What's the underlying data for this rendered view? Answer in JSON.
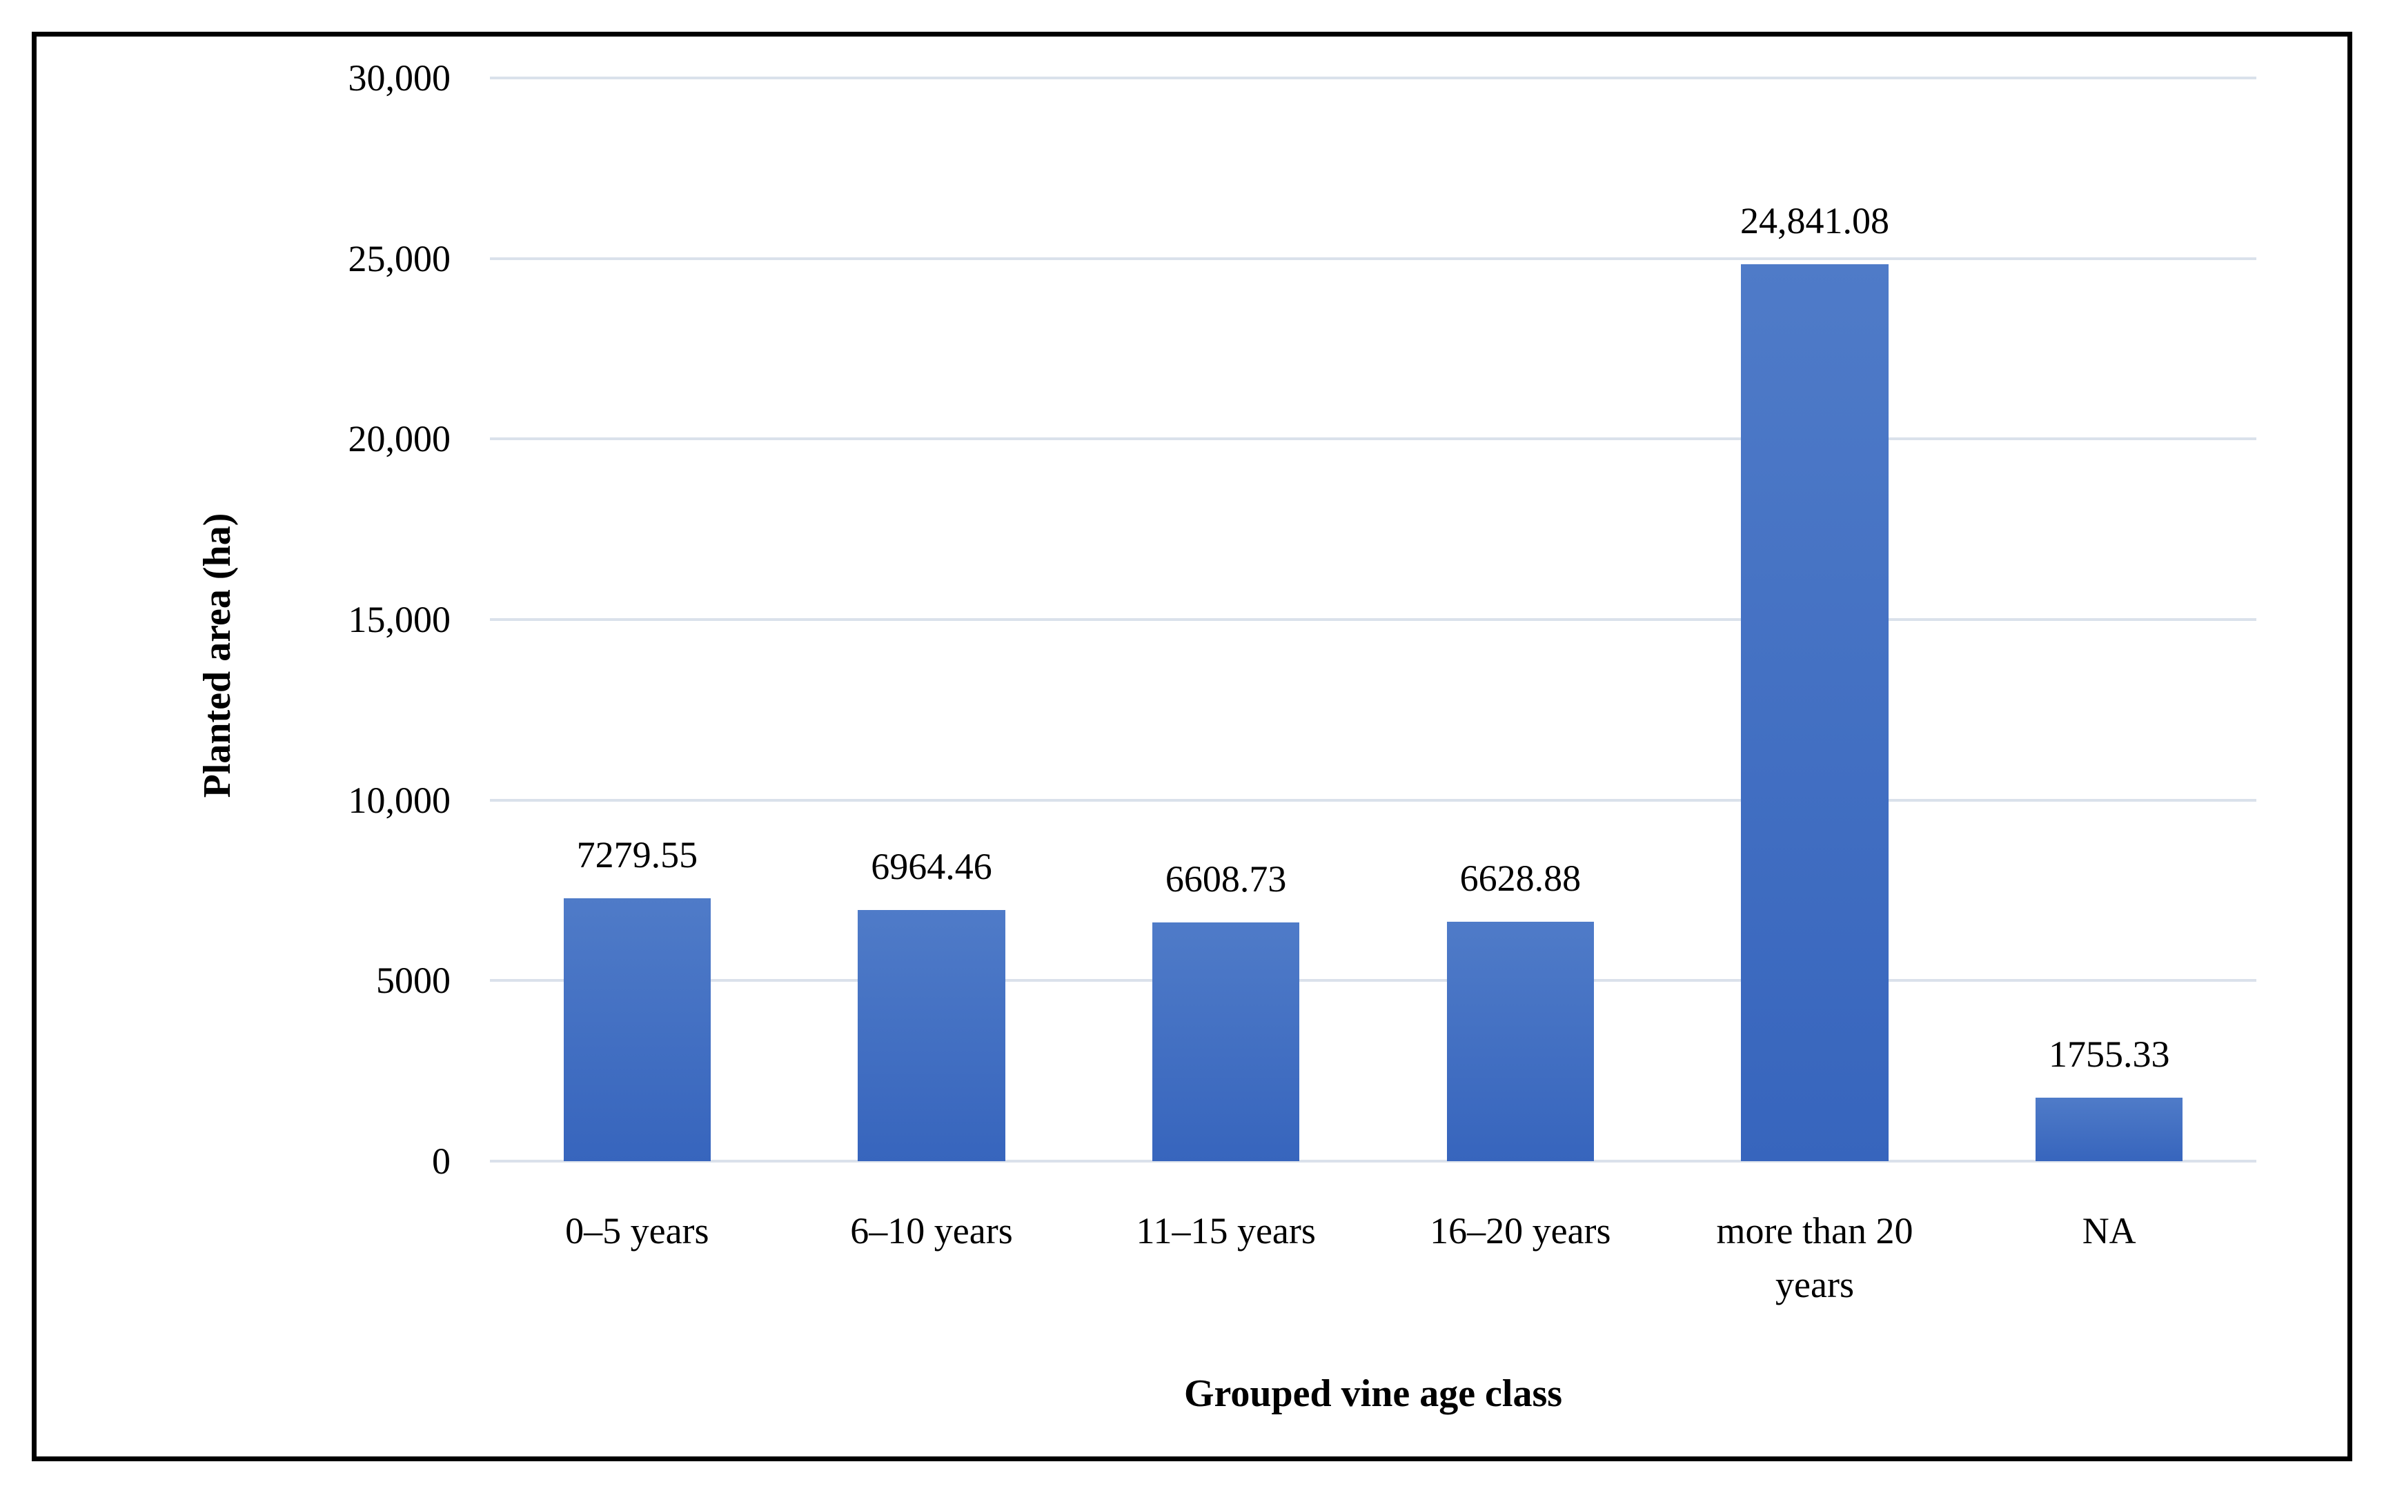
{
  "figure": {
    "kind": "column-chart-figure",
    "frame_border_color": "#000000",
    "background_color": "#ffffff"
  },
  "chart_data": {
    "type": "bar",
    "categories": [
      "0–5 years",
      "6–10 years",
      "11–15 years",
      "16–20 years",
      "more than 20 years",
      "NA"
    ],
    "values": [
      7279.55,
      6964.46,
      6608.73,
      6628.88,
      24841.08,
      1755.33
    ],
    "data_labels": [
      "7279.55",
      "6964.46",
      "6608.73",
      "6628.88",
      "24,841.08",
      "1755.33"
    ],
    "title": "",
    "xlabel": "Grouped vine age class",
    "ylabel": "Planted area (ha)",
    "ylim": [
      0,
      30000
    ],
    "ytick_values": [
      30000,
      25000,
      20000,
      15000,
      10000,
      5000,
      0
    ],
    "ytick_labels": [
      "30,000",
      "25,000",
      "20,000",
      "15,000",
      "10,000",
      "5000",
      "0"
    ],
    "grid": "horizontal gridlines on, no vertical gridlines",
    "legend": "none",
    "colors": {
      "bar_fill": "#4472C4",
      "bar_gradient_top": "#4F7BC8",
      "bar_gradient_bottom": "#3765BD",
      "gridline": "#DAE1EB",
      "text": "#000000"
    }
  }
}
